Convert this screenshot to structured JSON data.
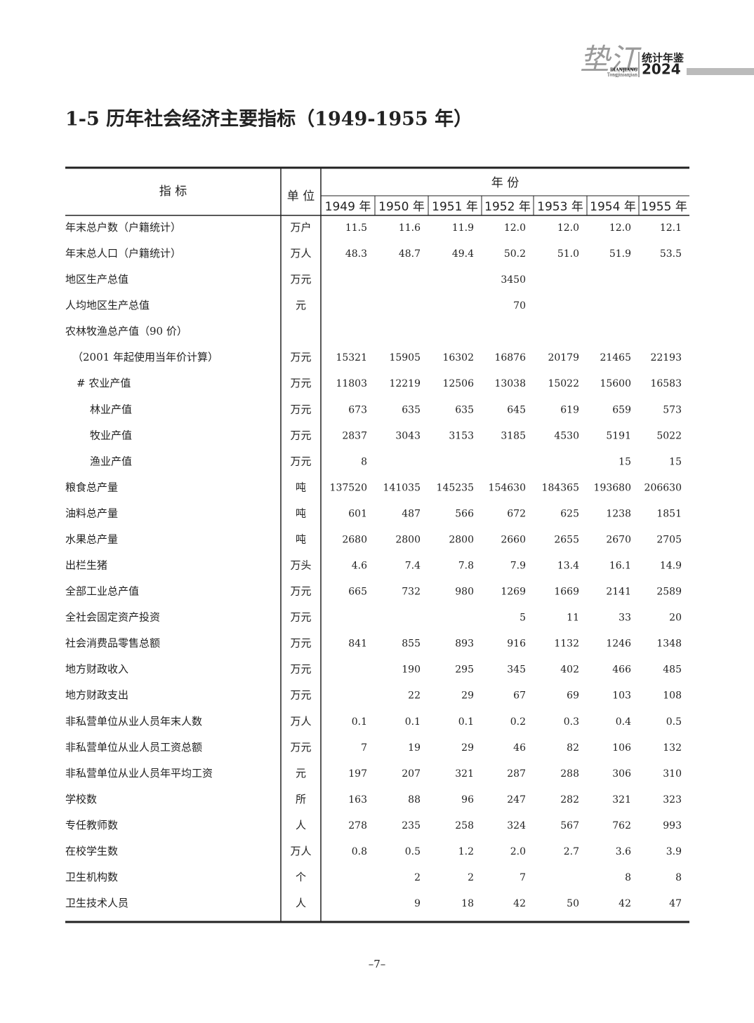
{
  "header": {
    "logo": "垫江",
    "book": "统计年鉴",
    "year": "2024",
    "pinyin": "DIANJIANG",
    "subtitle": "Tongjinianjian"
  },
  "title": "1-5  历年社会经济主要指标（1949-1955 年）",
  "table": {
    "head": {
      "indicator": "指 标",
      "unit": "单 位",
      "years_group": "年 份",
      "years": [
        "1949 年",
        "1950 年",
        "1951 年",
        "1952 年",
        "1953 年",
        "1954 年",
        "1955 年"
      ]
    },
    "rows": [
      {
        "label": "年末总户数（户籍统计）",
        "unit": "万户",
        "values": [
          "11.5",
          "11.6",
          "11.9",
          "12.0",
          "12.0",
          "12.0",
          "12.1"
        ]
      },
      {
        "label": "年末总人口（户籍统计）",
        "unit": "万人",
        "values": [
          "48.3",
          "48.7",
          "49.4",
          "50.2",
          "51.0",
          "51.9",
          "53.5"
        ]
      },
      {
        "label": "地区生产总值",
        "unit": "万元",
        "values": [
          null,
          null,
          null,
          "3450",
          null,
          null,
          null
        ]
      },
      {
        "label": "人均地区生产总值",
        "unit": "元",
        "values": [
          null,
          null,
          null,
          "70",
          null,
          null,
          null
        ]
      },
      {
        "label": "农林牧渔总产值（90 价）",
        "unit": null,
        "values": [
          null,
          null,
          null,
          null,
          null,
          null,
          null
        ]
      },
      {
        "label": "（2001 年起使用当年价计算）",
        "unit": "万元",
        "values": [
          "15321",
          "15905",
          "16302",
          "16876",
          "20179",
          "21465",
          "22193"
        ]
      },
      {
        "label": "# 农业产值",
        "unit": "万元",
        "values": [
          "11803",
          "12219",
          "12506",
          "13038",
          "15022",
          "15600",
          "16583"
        ]
      },
      {
        "label": "林业产值",
        "unit": "万元",
        "values": [
          "673",
          "635",
          "635",
          "645",
          "619",
          "659",
          "573"
        ]
      },
      {
        "label": "牧业产值",
        "unit": "万元",
        "values": [
          "2837",
          "3043",
          "3153",
          "3185",
          "4530",
          "5191",
          "5022"
        ]
      },
      {
        "label": "渔业产值",
        "unit": "万元",
        "values": [
          "8",
          null,
          null,
          null,
          null,
          "15",
          "15"
        ]
      },
      {
        "label": "粮食总产量",
        "unit": "吨",
        "values": [
          "137520",
          "141035",
          "145235",
          "154630",
          "184365",
          "193680",
          "206630"
        ]
      },
      {
        "label": "油料总产量",
        "unit": "吨",
        "values": [
          "601",
          "487",
          "566",
          "672",
          "625",
          "1238",
          "1851"
        ]
      },
      {
        "label": "水果总产量",
        "unit": "吨",
        "values": [
          "2680",
          "2800",
          "2800",
          "2660",
          "2655",
          "2670",
          "2705"
        ]
      },
      {
        "label": "出栏生猪",
        "unit": "万头",
        "values": [
          "4.6",
          "7.4",
          "7.8",
          "7.9",
          "13.4",
          "16.1",
          "14.9"
        ]
      },
      {
        "label": "全部工业总产值",
        "unit": "万元",
        "values": [
          "665",
          "732",
          "980",
          "1269",
          "1669",
          "2141",
          "2589"
        ]
      },
      {
        "label": "全社会固定资产投资",
        "unit": "万元",
        "values": [
          null,
          null,
          null,
          "5",
          "11",
          "33",
          "20"
        ]
      },
      {
        "label": "社会消费品零售总额",
        "unit": "万元",
        "values": [
          "841",
          "855",
          "893",
          "916",
          "1132",
          "1246",
          "1348"
        ]
      },
      {
        "label": "地方财政收入",
        "unit": "万元",
        "values": [
          null,
          "190",
          "295",
          "345",
          "402",
          "466",
          "485"
        ]
      },
      {
        "label": "地方财政支出",
        "unit": "万元",
        "values": [
          null,
          "22",
          "29",
          "67",
          "69",
          "103",
          "108"
        ]
      },
      {
        "label": "非私营单位从业人员年末人数",
        "unit": "万人",
        "values": [
          "0.1",
          "0.1",
          "0.1",
          "0.2",
          "0.3",
          "0.4",
          "0.5"
        ]
      },
      {
        "label": "非私营单位从业人员工资总额",
        "unit": "万元",
        "values": [
          "7",
          "19",
          "29",
          "46",
          "82",
          "106",
          "132"
        ]
      },
      {
        "label": "非私营单位从业人员年平均工资",
        "unit": "元",
        "values": [
          "197",
          "207",
          "321",
          "287",
          "288",
          "306",
          "310"
        ]
      },
      {
        "label": "学校数",
        "unit": "所",
        "values": [
          "163",
          "88",
          "96",
          "247",
          "282",
          "321",
          "323"
        ]
      },
      {
        "label": "专任教师数",
        "unit": "人",
        "values": [
          "278",
          "235",
          "258",
          "324",
          "567",
          "762",
          "993"
        ]
      },
      {
        "label": "在校学生数",
        "unit": "万人",
        "values": [
          "0.8",
          "0.5",
          "1.2",
          "2.0",
          "2.7",
          "3.6",
          "3.9"
        ]
      },
      {
        "label": "卫生机构数",
        "unit": "个",
        "values": [
          null,
          "2",
          "2",
          "7",
          null,
          "8",
          "8"
        ]
      },
      {
        "label": "卫生技术人员",
        "unit": "人",
        "values": [
          null,
          "9",
          "18",
          "42",
          "50",
          "42",
          "47"
        ]
      }
    ]
  },
  "page_number": "–7–"
}
